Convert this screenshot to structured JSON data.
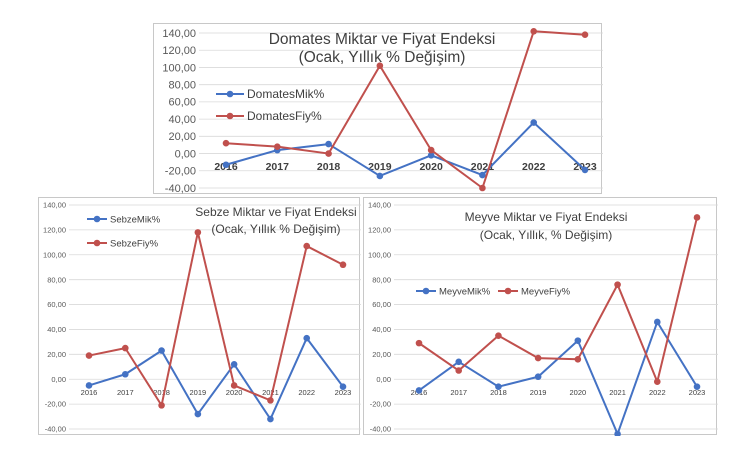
{
  "colors": {
    "blue": "#4472C4",
    "red": "#C0504D",
    "grid": "#d9d9d9"
  },
  "chart_data": [
    {
      "type": "line",
      "title": "Domates Miktar ve Fiyat Endeksi",
      "subtitle": "(Ocak, Yıllık % Değişim)",
      "categories": [
        "2016",
        "2017",
        "2018",
        "2019",
        "2020",
        "2021",
        "2022",
        "2023"
      ],
      "yticks": [
        "-40,00",
        "-20,00",
        "0,00",
        "20,00",
        "40,00",
        "60,00",
        "80,00",
        "100,00",
        "120,00",
        "140,00"
      ],
      "ylim": [
        -40,
        140
      ],
      "grid": true,
      "legend_position": "left",
      "series": [
        {
          "name": "DomatesMik%",
          "color": "#4472C4",
          "values": [
            -13,
            4,
            11,
            -26,
            -2,
            -25,
            36,
            -19
          ]
        },
        {
          "name": "DomatesFiy%",
          "color": "#C0504D",
          "values": [
            12,
            8,
            0,
            102,
            4,
            -40,
            142,
            138
          ]
        }
      ]
    },
    {
      "type": "line",
      "title": "Sebze Miktar ve Fiyat Endeksi",
      "subtitle": "(Ocak, Yıllık % Değişim)",
      "categories": [
        "2016",
        "2017",
        "2018",
        "2019",
        "2020",
        "2021",
        "2022",
        "2023"
      ],
      "yticks": [
        "-40,00",
        "-20,00",
        "0,00",
        "20,00",
        "40,00",
        "60,00",
        "80,00",
        "100,00",
        "120,00",
        "140,00"
      ],
      "ylim": [
        -40,
        140
      ],
      "grid": true,
      "legend_position": "top-left",
      "series": [
        {
          "name": "SebzeMik%",
          "color": "#4472C4",
          "values": [
            -5,
            4,
            23,
            -28,
            12,
            -32,
            33,
            -6
          ]
        },
        {
          "name": "SebzeFiy%",
          "color": "#C0504D",
          "values": [
            19,
            25,
            -21,
            118,
            -5,
            -17,
            107,
            92
          ]
        }
      ]
    },
    {
      "type": "line",
      "title": "Meyve Miktar ve Fiyat Endeksi",
      "subtitle": "(Ocak, Yıllık, % Değişim)",
      "categories": [
        "2016",
        "2017",
        "2018",
        "2019",
        "2020",
        "2021",
        "2022",
        "2023"
      ],
      "yticks": [
        "-40,00",
        "-20,00",
        "0,00",
        "20,00",
        "40,00",
        "60,00",
        "80,00",
        "100,00",
        "120,00",
        "140,00"
      ],
      "ylim": [
        -40,
        140
      ],
      "grid": true,
      "legend_position": "left",
      "series": [
        {
          "name": "MeyveMik%",
          "color": "#4472C4",
          "values": [
            -9,
            14,
            -6,
            2,
            31,
            -44,
            46,
            -6
          ]
        },
        {
          "name": "MeyveFiy%",
          "color": "#C0504D",
          "values": [
            29,
            7,
            35,
            17,
            16,
            76,
            -2,
            130
          ]
        }
      ]
    }
  ]
}
